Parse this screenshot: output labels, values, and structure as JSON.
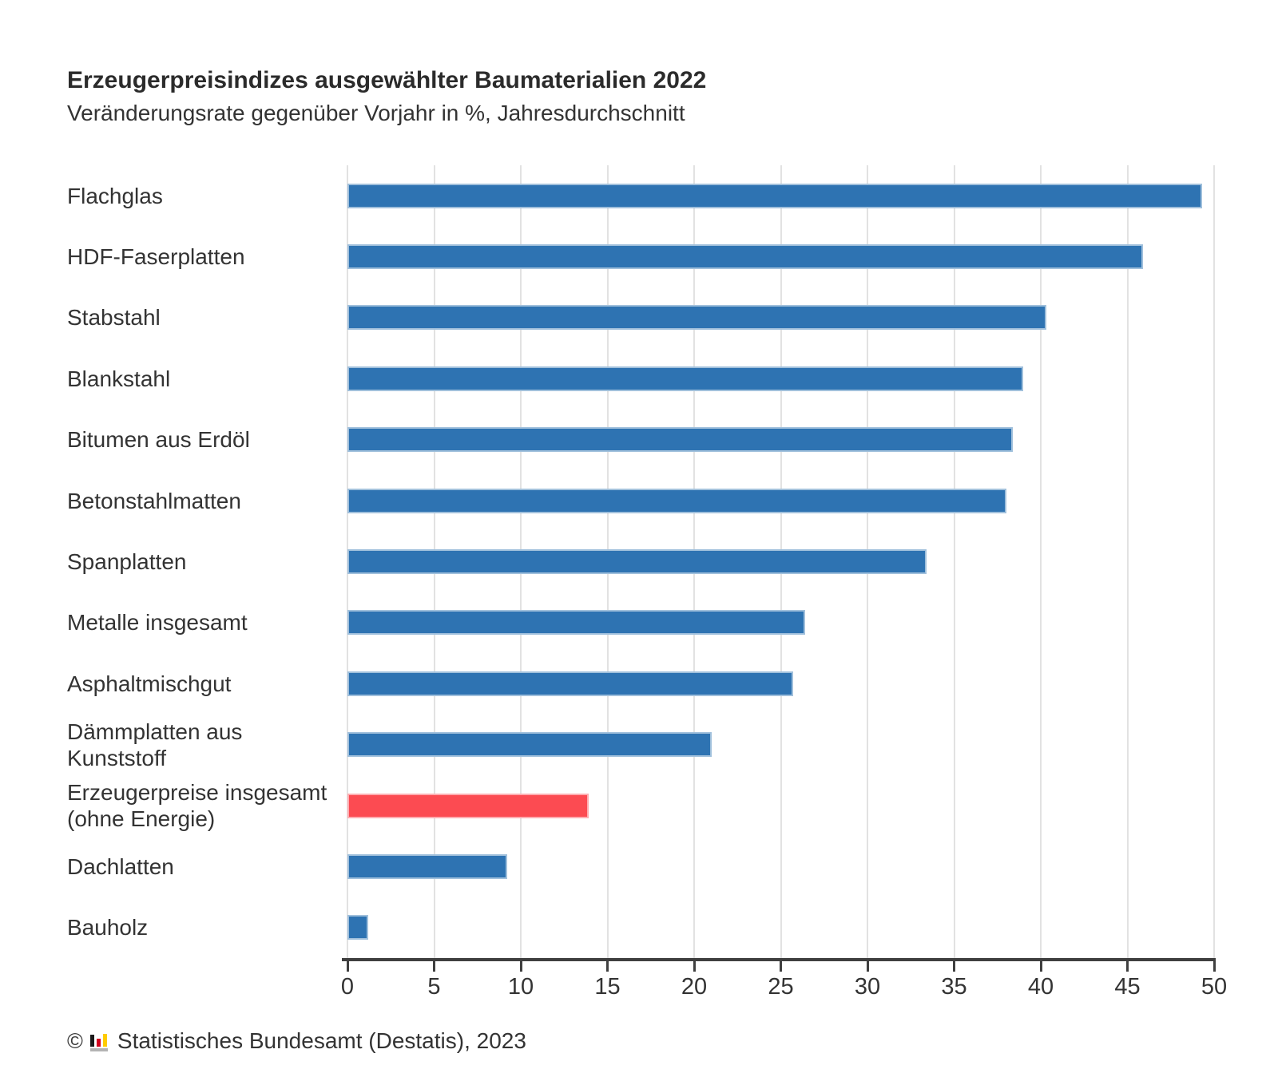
{
  "page": {
    "title": "Erzeugerpreisindizes ausgewählter Baumaterialien 2022",
    "subtitle": "Veränderungsrate gegenüber Vorjahr in %, Jahresdurchschnitt",
    "footer": {
      "copyright": "©",
      "logo_icon": "destatis-mini-barchart-icon",
      "source": "Statistisches Bundesamt (Destatis), 2023"
    }
  },
  "chart_data": {
    "type": "bar",
    "orientation": "horizontal",
    "title": "Erzeugerpreisindizes ausgewählter Baumaterialien 2022",
    "subtitle": "Veränderungsrate gegenüber Vorjahr in %, Jahresdurchschnitt",
    "categories": [
      "Flachglas",
      "HDF-Faserplatten",
      "Stabstahl",
      "Blankstahl",
      "Bitumen aus Erdöl",
      "Betonstahlmatten",
      "Spanplatten",
      "Metalle insgesamt",
      "Asphaltmischgut",
      "Dämmplatten aus\nKunststoff",
      "Erzeugerpreise insgesamt\n(ohne Energie)",
      "Dachlatten",
      "Bauholz"
    ],
    "values": [
      49.3,
      45.9,
      40.3,
      39.0,
      38.4,
      38.0,
      33.4,
      26.4,
      25.7,
      21.0,
      13.9,
      9.2,
      1.2
    ],
    "unit": "%",
    "highlight_index": 10,
    "highlight_category": "Erzeugerpreise insgesamt (ohne Energie)",
    "xlabel": "",
    "ylabel": "",
    "xlim": [
      0,
      50
    ],
    "xticks": [
      0,
      5,
      10,
      15,
      20,
      25,
      30,
      35,
      40,
      45,
      50
    ],
    "grid": true,
    "legend": false,
    "colors": {
      "bar": "#2e73b2",
      "highlight": "#fc4b52",
      "grid": "#e2e2e2",
      "axis": "#3f3f3f",
      "text": "#333333"
    }
  }
}
